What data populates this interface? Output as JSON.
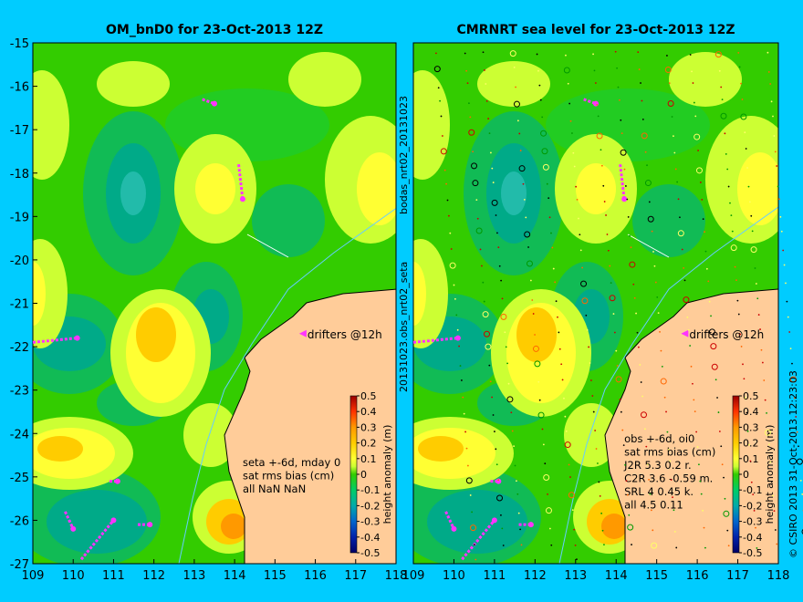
{
  "colors": {
    "background": "#00ccff",
    "land": "#ffcc99",
    "drifter": "#ff33ff",
    "coast_line": "#66ccff"
  },
  "side_labels": {
    "middle_top": "bodas_nrt02_20131023",
    "middle_bottom": "20131023.obs_nrt02_seta",
    "right_edge": "© CSIRO 2013   31-Oct-2013 12:23:03"
  },
  "chart_data": [
    {
      "type": "heatmap",
      "title": "OM_bnD0 for 23-Oct-2013 12Z",
      "xlim": [
        109,
        118
      ],
      "ylim": [
        -27,
        -15
      ],
      "x_ticks": [
        "109",
        "110",
        "111",
        "112",
        "113",
        "114",
        "115",
        "116",
        "117",
        "118"
      ],
      "y_ticks": [
        "-15",
        "-16",
        "-17",
        "-18",
        "-19",
        "-20",
        "-21",
        "-22",
        "-23",
        "-24",
        "-25",
        "-26",
        "-27"
      ],
      "colorbar": {
        "label": "height anomaly (m)",
        "ticks": [
          "0.5",
          "0.4",
          "0.3",
          "0.2",
          "0.1",
          "0",
          "-0.1",
          "-0.2",
          "-0.3",
          "-0.4",
          "-0.5"
        ]
      },
      "legend_label": "drifters @12h",
      "stats_lines": [
        "seta +-6d, mday 0",
        "sat rms bias (cm)",
        "all NaN NaN"
      ]
    },
    {
      "type": "heatmap",
      "title": "CMRNRT sea level  for 23-Oct-2013 12Z",
      "xlim": [
        109,
        118
      ],
      "ylim": [
        -27,
        -15
      ],
      "x_ticks": [
        "109",
        "110",
        "111",
        "112",
        "113",
        "114",
        "115",
        "116",
        "117",
        "118"
      ],
      "y_ticks": [],
      "colorbar": {
        "label": "height anomaly (m)",
        "ticks": [
          "0.5",
          "0.4",
          "0.3",
          "0.2",
          "0.1",
          "0",
          "-0.1",
          "-0.2",
          "-0.3",
          "-0.4",
          "-0.5"
        ]
      },
      "legend_label": "drifters @12h",
      "stats_lines": [
        "obs +-6d, oi0",
        "sat rms bias (cm)",
        "J2R   5.3  0.2  r.",
        "C2R   3.6  -0.59  m.",
        "SRL    4  0.45  k.",
        "all   4.5  0.11"
      ]
    }
  ]
}
